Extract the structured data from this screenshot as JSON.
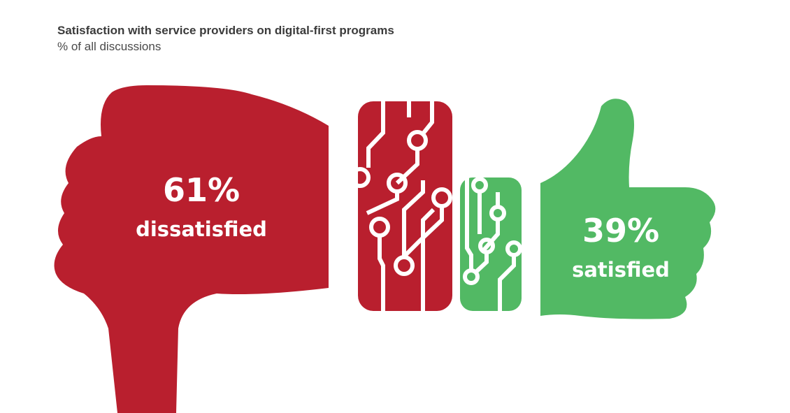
{
  "header": {
    "title": "Satisfaction with service providers on digital-first programs",
    "subtitle": "% of all discussions"
  },
  "colors": {
    "dissatisfied": "#b91f2e",
    "satisfied": "#52b964",
    "circuit_line": "#ffffff"
  },
  "icons": {
    "left": "thumbs-down-icon",
    "right": "thumbs-up-icon",
    "center": "circuit-board-icon"
  },
  "chart_data": {
    "type": "pictograph",
    "categories": [
      "dissatisfied",
      "satisfied"
    ],
    "values": [
      61,
      39
    ],
    "unit": "%",
    "labels": [
      {
        "value_text": "61%",
        "category_text": "dissatisfied"
      },
      {
        "value_text": "39%",
        "category_text": "satisfied"
      }
    ],
    "title": "Satisfaction with service providers on digital-first programs",
    "subtitle": "% of all discussions"
  }
}
